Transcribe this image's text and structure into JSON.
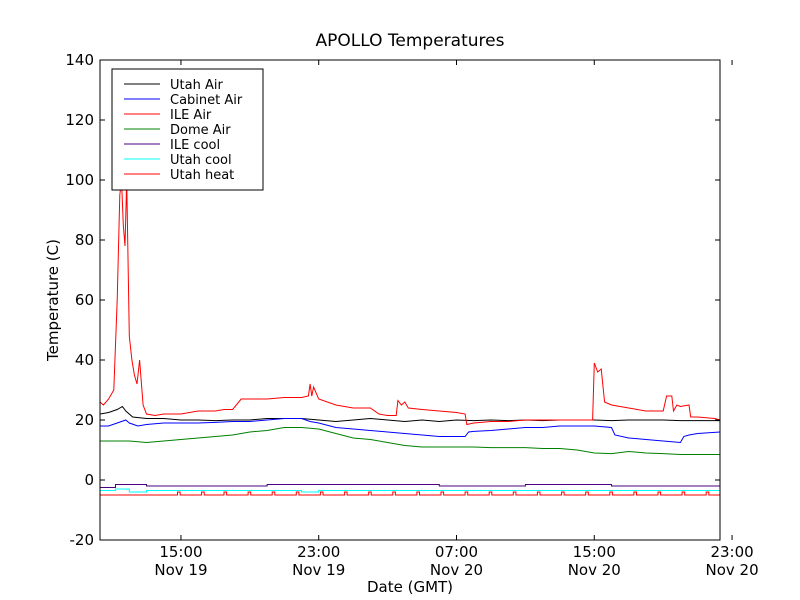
{
  "chart_data": {
    "type": "line",
    "title": "APOLLO Temperatures",
    "xlabel": "Date (GMT)",
    "ylabel": "Temperature (C)",
    "x_unit": "hours since Nov 19 00:00 GMT",
    "xlim": [
      10.3,
      46.3
    ],
    "ylim": [
      -20,
      140
    ],
    "yticks": [
      -20,
      0,
      20,
      40,
      60,
      80,
      100,
      120,
      140
    ],
    "xticks": [
      {
        "value": 15,
        "time": "15:00",
        "date": "Nov 19"
      },
      {
        "value": 23,
        "time": "23:00",
        "date": "Nov 19"
      },
      {
        "value": 31,
        "time": "07:00",
        "date": "Nov 20"
      },
      {
        "value": 39,
        "time": "15:00",
        "date": "Nov 20"
      },
      {
        "value": 47,
        "time": "23:00",
        "date": "Nov 20"
      }
    ],
    "legend_position": "top-left",
    "series": [
      {
        "name": "Utah Air",
        "color": "#000000",
        "points": [
          [
            10.3,
            22
          ],
          [
            10.8,
            22.5
          ],
          [
            11.3,
            23.5
          ],
          [
            11.6,
            24.5
          ],
          [
            11.8,
            23
          ],
          [
            12.2,
            21
          ],
          [
            13,
            20.5
          ],
          [
            14,
            20.5
          ],
          [
            15,
            20
          ],
          [
            16,
            20
          ],
          [
            17,
            19.8
          ],
          [
            18,
            20
          ],
          [
            19,
            20
          ],
          [
            20,
            20.5
          ],
          [
            21,
            20.5
          ],
          [
            22,
            20.5
          ],
          [
            23,
            20
          ],
          [
            24,
            19.5
          ],
          [
            25,
            20
          ],
          [
            26,
            20.5
          ],
          [
            27,
            20
          ],
          [
            28,
            19.5
          ],
          [
            29,
            20
          ],
          [
            30,
            19.5
          ],
          [
            31,
            20
          ],
          [
            32,
            19.8
          ],
          [
            33,
            20
          ],
          [
            34,
            19.8
          ],
          [
            35,
            20
          ],
          [
            36,
            19.8
          ],
          [
            37,
            20
          ],
          [
            38,
            20
          ],
          [
            39,
            20
          ],
          [
            40,
            19.8
          ],
          [
            41,
            20
          ],
          [
            42,
            20
          ],
          [
            43,
            20
          ],
          [
            44,
            19.8
          ],
          [
            45,
            19.8
          ],
          [
            46.3,
            19.8
          ]
        ]
      },
      {
        "name": "Cabinet Air",
        "color": "#0000ff",
        "points": [
          [
            10.3,
            18
          ],
          [
            10.8,
            18
          ],
          [
            11.3,
            19
          ],
          [
            11.8,
            20
          ],
          [
            12,
            19
          ],
          [
            12.5,
            18
          ],
          [
            13,
            18.5
          ],
          [
            14,
            19
          ],
          [
            15,
            19
          ],
          [
            16,
            19
          ],
          [
            17,
            19.2
          ],
          [
            18,
            19.5
          ],
          [
            19,
            19.5
          ],
          [
            20,
            20
          ],
          [
            21,
            20.5
          ],
          [
            22,
            20.5
          ],
          [
            22.5,
            19.5
          ],
          [
            23,
            19
          ],
          [
            24,
            17.5
          ],
          [
            25,
            17
          ],
          [
            26,
            16.5
          ],
          [
            27,
            16
          ],
          [
            28,
            15.5
          ],
          [
            29,
            15
          ],
          [
            30,
            14.5
          ],
          [
            31,
            14.5
          ],
          [
            31.5,
            14.5
          ],
          [
            31.7,
            16
          ],
          [
            32,
            16.2
          ],
          [
            33,
            16.5
          ],
          [
            34,
            17
          ],
          [
            35,
            17.5
          ],
          [
            36,
            17.5
          ],
          [
            37,
            18
          ],
          [
            38,
            18
          ],
          [
            39,
            18
          ],
          [
            40,
            17.5
          ],
          [
            40.2,
            15
          ],
          [
            41,
            14
          ],
          [
            42,
            13.5
          ],
          [
            43,
            13
          ],
          [
            44,
            12.5
          ],
          [
            44.2,
            14.5
          ],
          [
            44.5,
            15
          ],
          [
            45,
            15.5
          ],
          [
            46.3,
            16
          ]
        ]
      },
      {
        "name": "ILE Air",
        "color": "#ff0000",
        "points": [
          [
            10.3,
            26
          ],
          [
            10.5,
            25
          ],
          [
            10.8,
            27
          ],
          [
            11.1,
            30
          ],
          [
            11.3,
            60
          ],
          [
            11.45,
            95
          ],
          [
            11.55,
            100
          ],
          [
            11.65,
            85
          ],
          [
            11.75,
            78
          ],
          [
            11.85,
            100
          ],
          [
            12,
            48
          ],
          [
            12.15,
            40
          ],
          [
            12.3,
            35
          ],
          [
            12.45,
            32
          ],
          [
            12.6,
            40
          ],
          [
            12.8,
            25
          ],
          [
            13,
            22
          ],
          [
            13.5,
            21.5
          ],
          [
            14,
            22
          ],
          [
            15,
            22
          ],
          [
            16,
            23
          ],
          [
            17,
            23
          ],
          [
            17.5,
            23.5
          ],
          [
            18,
            23.5
          ],
          [
            18.5,
            27
          ],
          [
            19,
            27
          ],
          [
            20,
            27
          ],
          [
            21,
            27.5
          ],
          [
            22,
            27.5
          ],
          [
            22.4,
            28
          ],
          [
            22.5,
            32
          ],
          [
            22.6,
            28
          ],
          [
            22.7,
            31
          ],
          [
            23,
            27
          ],
          [
            24,
            25
          ],
          [
            25,
            24
          ],
          [
            26,
            24
          ],
          [
            26.5,
            22
          ],
          [
            27,
            21.5
          ],
          [
            27.5,
            21.5
          ],
          [
            27.6,
            26.5
          ],
          [
            27.8,
            25
          ],
          [
            28,
            26
          ],
          [
            28.2,
            24
          ],
          [
            29,
            23.5
          ],
          [
            30,
            23
          ],
          [
            31,
            22.5
          ],
          [
            31.5,
            22
          ],
          [
            31.6,
            18.5
          ],
          [
            32,
            19
          ],
          [
            33,
            19.5
          ],
          [
            34,
            19.5
          ],
          [
            35,
            20
          ],
          [
            36,
            20
          ],
          [
            37,
            20
          ],
          [
            38,
            20
          ],
          [
            38.9,
            20
          ],
          [
            39,
            39
          ],
          [
            39.2,
            36
          ],
          [
            39.4,
            37
          ],
          [
            39.6,
            26
          ],
          [
            40,
            25
          ],
          [
            41,
            24
          ],
          [
            42,
            23
          ],
          [
            43,
            23
          ],
          [
            43.2,
            28
          ],
          [
            43.5,
            28
          ],
          [
            43.6,
            23
          ],
          [
            43.8,
            25
          ],
          [
            44,
            24.5
          ],
          [
            44.5,
            25
          ],
          [
            44.6,
            21
          ],
          [
            45,
            21
          ],
          [
            46,
            20.5
          ],
          [
            46.3,
            20
          ]
        ]
      },
      {
        "name": "Dome Air",
        "color": "#008000",
        "points": [
          [
            10.3,
            13
          ],
          [
            11,
            13
          ],
          [
            12,
            13
          ],
          [
            13,
            12.5
          ],
          [
            14,
            13
          ],
          [
            15,
            13.5
          ],
          [
            16,
            14
          ],
          [
            17,
            14.5
          ],
          [
            18,
            15
          ],
          [
            19,
            16
          ],
          [
            20,
            16.5
          ],
          [
            21,
            17.5
          ],
          [
            22,
            17.5
          ],
          [
            23,
            17
          ],
          [
            24,
            15.5
          ],
          [
            25,
            14
          ],
          [
            26,
            13.5
          ],
          [
            27,
            12.5
          ],
          [
            28,
            11.5
          ],
          [
            29,
            11
          ],
          [
            30,
            11
          ],
          [
            31,
            11
          ],
          [
            32,
            11
          ],
          [
            33,
            10.8
          ],
          [
            34,
            10.8
          ],
          [
            35,
            10.8
          ],
          [
            36,
            10.5
          ],
          [
            37,
            10.5
          ],
          [
            38,
            10
          ],
          [
            39,
            9
          ],
          [
            40,
            8.8
          ],
          [
            41,
            9.5
          ],
          [
            42,
            9
          ],
          [
            43,
            8.8
          ],
          [
            44,
            8.5
          ],
          [
            45,
            8.5
          ],
          [
            46.3,
            8.5
          ]
        ]
      },
      {
        "name": "ILE cool",
        "color": "#4b0082",
        "points": [
          [
            10.3,
            -2.5
          ],
          [
            11.2,
            -2.5
          ],
          [
            11.2,
            -1.5
          ],
          [
            13,
            -1.5
          ],
          [
            13,
            -2
          ],
          [
            20,
            -2
          ],
          [
            20,
            -1.5
          ],
          [
            30,
            -1.5
          ],
          [
            30,
            -2
          ],
          [
            35,
            -2
          ],
          [
            35,
            -1.5
          ],
          [
            40,
            -1.5
          ],
          [
            40,
            -2
          ],
          [
            46.3,
            -2
          ]
        ]
      },
      {
        "name": "Utah cool",
        "color": "#00ffff",
        "points": [
          [
            10.3,
            -3.5
          ],
          [
            11.2,
            -3.5
          ],
          [
            11.2,
            -3
          ],
          [
            12,
            -3
          ],
          [
            12,
            -4
          ],
          [
            13,
            -4
          ],
          [
            13,
            -3.5
          ],
          [
            20,
            -3.5
          ],
          [
            22,
            -3.5
          ],
          [
            22,
            -4
          ],
          [
            23,
            -4
          ],
          [
            23,
            -3.5
          ],
          [
            46.3,
            -3.5
          ]
        ]
      },
      {
        "name": "Utah heat",
        "color": "#ff0000",
        "steps": {
          "base": -5,
          "high": -4,
          "starts": [
            14.8,
            16.2,
            17.5,
            18.9,
            20.3,
            21.7,
            23.1,
            24.5,
            25.9,
            27.3,
            28.7,
            30.1,
            31.5,
            32.9,
            34.3,
            35.7,
            37.1,
            38.5,
            39.9,
            41.3,
            42.7,
            44.1,
            45.5
          ],
          "width": 0.15
        }
      }
    ]
  }
}
